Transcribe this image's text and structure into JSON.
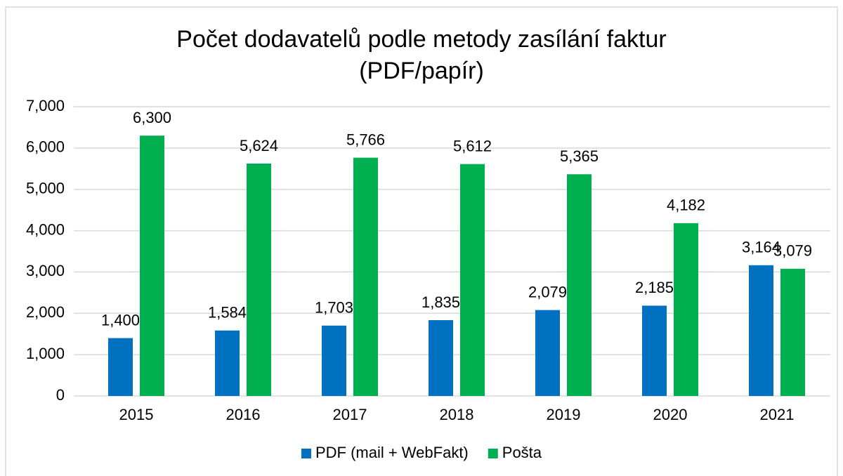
{
  "chart_data": {
    "type": "bar",
    "title": [
      "Počet dodavatelů podle metody zasílání faktur",
      "(PDF/papír)"
    ],
    "categories": [
      "2015",
      "2016",
      "2017",
      "2018",
      "2019",
      "2020",
      "2021"
    ],
    "series": [
      {
        "name": "PDF (mail + WebFakt)",
        "color": "#0070c0",
        "values": [
          1400,
          1584,
          1703,
          1835,
          2079,
          2185,
          3164
        ],
        "value_labels": [
          "1,400",
          "1,584",
          "1,703",
          "1,835",
          "2,079",
          "2,185",
          "3,164"
        ]
      },
      {
        "name": "Pošta",
        "color": "#00b050",
        "values": [
          6300,
          5624,
          5766,
          5612,
          5365,
          4182,
          3079
        ],
        "value_labels": [
          "6,300",
          "5,624",
          "5,766",
          "5,612",
          "5,365",
          "4,182",
          "3,079"
        ]
      }
    ],
    "ylim": [
      0,
      7000
    ],
    "yticks": [
      0,
      {
        "value": 1000,
        "label": "1,000"
      },
      {
        "value": 2000,
        "label": "2,000"
      },
      {
        "value": 3000,
        "label": "3,000"
      },
      {
        "value": 4000,
        "label": "4,000"
      },
      {
        "value": 5000,
        "label": "5,000"
      },
      {
        "value": 6000,
        "label": "6,000"
      },
      {
        "value": 7000,
        "label": "7,000"
      }
    ],
    "grid": true,
    "legend": "bottom"
  }
}
